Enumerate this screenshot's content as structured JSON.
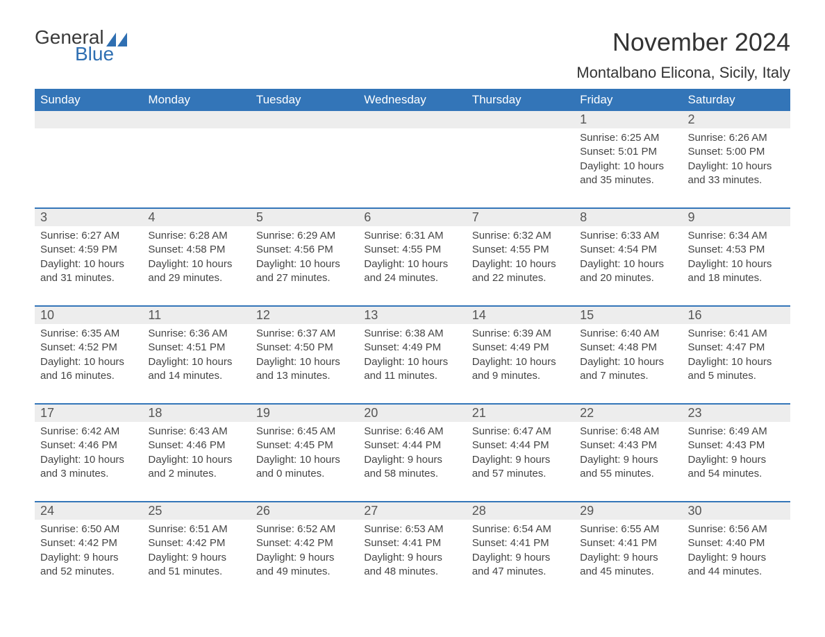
{
  "logo": {
    "general": "General",
    "blue": "Blue",
    "shape_color": "#2f6fb2"
  },
  "title": "November 2024",
  "location": "Montalbano Elicona, Sicily, Italy",
  "colors": {
    "header_bg": "#3375b8",
    "header_text": "#ffffff",
    "daynum_bg": "#ededed",
    "body_text": "#444444",
    "title_text": "#333333",
    "rule": "#3375b8"
  },
  "typography": {
    "month_title_fontsize": 36,
    "location_fontsize": 22,
    "header_fontsize": 17,
    "daynum_fontsize": 18,
    "body_fontsize": 15
  },
  "day_headers": [
    "Sunday",
    "Monday",
    "Tuesday",
    "Wednesday",
    "Thursday",
    "Friday",
    "Saturday"
  ],
  "weeks": [
    [
      null,
      null,
      null,
      null,
      null,
      {
        "n": "1",
        "sunrise": "Sunrise: 6:25 AM",
        "sunset": "Sunset: 5:01 PM",
        "daylight": "Daylight: 10 hours and 35 minutes."
      },
      {
        "n": "2",
        "sunrise": "Sunrise: 6:26 AM",
        "sunset": "Sunset: 5:00 PM",
        "daylight": "Daylight: 10 hours and 33 minutes."
      }
    ],
    [
      {
        "n": "3",
        "sunrise": "Sunrise: 6:27 AM",
        "sunset": "Sunset: 4:59 PM",
        "daylight": "Daylight: 10 hours and 31 minutes."
      },
      {
        "n": "4",
        "sunrise": "Sunrise: 6:28 AM",
        "sunset": "Sunset: 4:58 PM",
        "daylight": "Daylight: 10 hours and 29 minutes."
      },
      {
        "n": "5",
        "sunrise": "Sunrise: 6:29 AM",
        "sunset": "Sunset: 4:56 PM",
        "daylight": "Daylight: 10 hours and 27 minutes."
      },
      {
        "n": "6",
        "sunrise": "Sunrise: 6:31 AM",
        "sunset": "Sunset: 4:55 PM",
        "daylight": "Daylight: 10 hours and 24 minutes."
      },
      {
        "n": "7",
        "sunrise": "Sunrise: 6:32 AM",
        "sunset": "Sunset: 4:55 PM",
        "daylight": "Daylight: 10 hours and 22 minutes."
      },
      {
        "n": "8",
        "sunrise": "Sunrise: 6:33 AM",
        "sunset": "Sunset: 4:54 PM",
        "daylight": "Daylight: 10 hours and 20 minutes."
      },
      {
        "n": "9",
        "sunrise": "Sunrise: 6:34 AM",
        "sunset": "Sunset: 4:53 PM",
        "daylight": "Daylight: 10 hours and 18 minutes."
      }
    ],
    [
      {
        "n": "10",
        "sunrise": "Sunrise: 6:35 AM",
        "sunset": "Sunset: 4:52 PM",
        "daylight": "Daylight: 10 hours and 16 minutes."
      },
      {
        "n": "11",
        "sunrise": "Sunrise: 6:36 AM",
        "sunset": "Sunset: 4:51 PM",
        "daylight": "Daylight: 10 hours and 14 minutes."
      },
      {
        "n": "12",
        "sunrise": "Sunrise: 6:37 AM",
        "sunset": "Sunset: 4:50 PM",
        "daylight": "Daylight: 10 hours and 13 minutes."
      },
      {
        "n": "13",
        "sunrise": "Sunrise: 6:38 AM",
        "sunset": "Sunset: 4:49 PM",
        "daylight": "Daylight: 10 hours and 11 minutes."
      },
      {
        "n": "14",
        "sunrise": "Sunrise: 6:39 AM",
        "sunset": "Sunset: 4:49 PM",
        "daylight": "Daylight: 10 hours and 9 minutes."
      },
      {
        "n": "15",
        "sunrise": "Sunrise: 6:40 AM",
        "sunset": "Sunset: 4:48 PM",
        "daylight": "Daylight: 10 hours and 7 minutes."
      },
      {
        "n": "16",
        "sunrise": "Sunrise: 6:41 AM",
        "sunset": "Sunset: 4:47 PM",
        "daylight": "Daylight: 10 hours and 5 minutes."
      }
    ],
    [
      {
        "n": "17",
        "sunrise": "Sunrise: 6:42 AM",
        "sunset": "Sunset: 4:46 PM",
        "daylight": "Daylight: 10 hours and 3 minutes."
      },
      {
        "n": "18",
        "sunrise": "Sunrise: 6:43 AM",
        "sunset": "Sunset: 4:46 PM",
        "daylight": "Daylight: 10 hours and 2 minutes."
      },
      {
        "n": "19",
        "sunrise": "Sunrise: 6:45 AM",
        "sunset": "Sunset: 4:45 PM",
        "daylight": "Daylight: 10 hours and 0 minutes."
      },
      {
        "n": "20",
        "sunrise": "Sunrise: 6:46 AM",
        "sunset": "Sunset: 4:44 PM",
        "daylight": "Daylight: 9 hours and 58 minutes."
      },
      {
        "n": "21",
        "sunrise": "Sunrise: 6:47 AM",
        "sunset": "Sunset: 4:44 PM",
        "daylight": "Daylight: 9 hours and 57 minutes."
      },
      {
        "n": "22",
        "sunrise": "Sunrise: 6:48 AM",
        "sunset": "Sunset: 4:43 PM",
        "daylight": "Daylight: 9 hours and 55 minutes."
      },
      {
        "n": "23",
        "sunrise": "Sunrise: 6:49 AM",
        "sunset": "Sunset: 4:43 PM",
        "daylight": "Daylight: 9 hours and 54 minutes."
      }
    ],
    [
      {
        "n": "24",
        "sunrise": "Sunrise: 6:50 AM",
        "sunset": "Sunset: 4:42 PM",
        "daylight": "Daylight: 9 hours and 52 minutes."
      },
      {
        "n": "25",
        "sunrise": "Sunrise: 6:51 AM",
        "sunset": "Sunset: 4:42 PM",
        "daylight": "Daylight: 9 hours and 51 minutes."
      },
      {
        "n": "26",
        "sunrise": "Sunrise: 6:52 AM",
        "sunset": "Sunset: 4:42 PM",
        "daylight": "Daylight: 9 hours and 49 minutes."
      },
      {
        "n": "27",
        "sunrise": "Sunrise: 6:53 AM",
        "sunset": "Sunset: 4:41 PM",
        "daylight": "Daylight: 9 hours and 48 minutes."
      },
      {
        "n": "28",
        "sunrise": "Sunrise: 6:54 AM",
        "sunset": "Sunset: 4:41 PM",
        "daylight": "Daylight: 9 hours and 47 minutes."
      },
      {
        "n": "29",
        "sunrise": "Sunrise: 6:55 AM",
        "sunset": "Sunset: 4:41 PM",
        "daylight": "Daylight: 9 hours and 45 minutes."
      },
      {
        "n": "30",
        "sunrise": "Sunrise: 6:56 AM",
        "sunset": "Sunset: 4:40 PM",
        "daylight": "Daylight: 9 hours and 44 minutes."
      }
    ]
  ]
}
